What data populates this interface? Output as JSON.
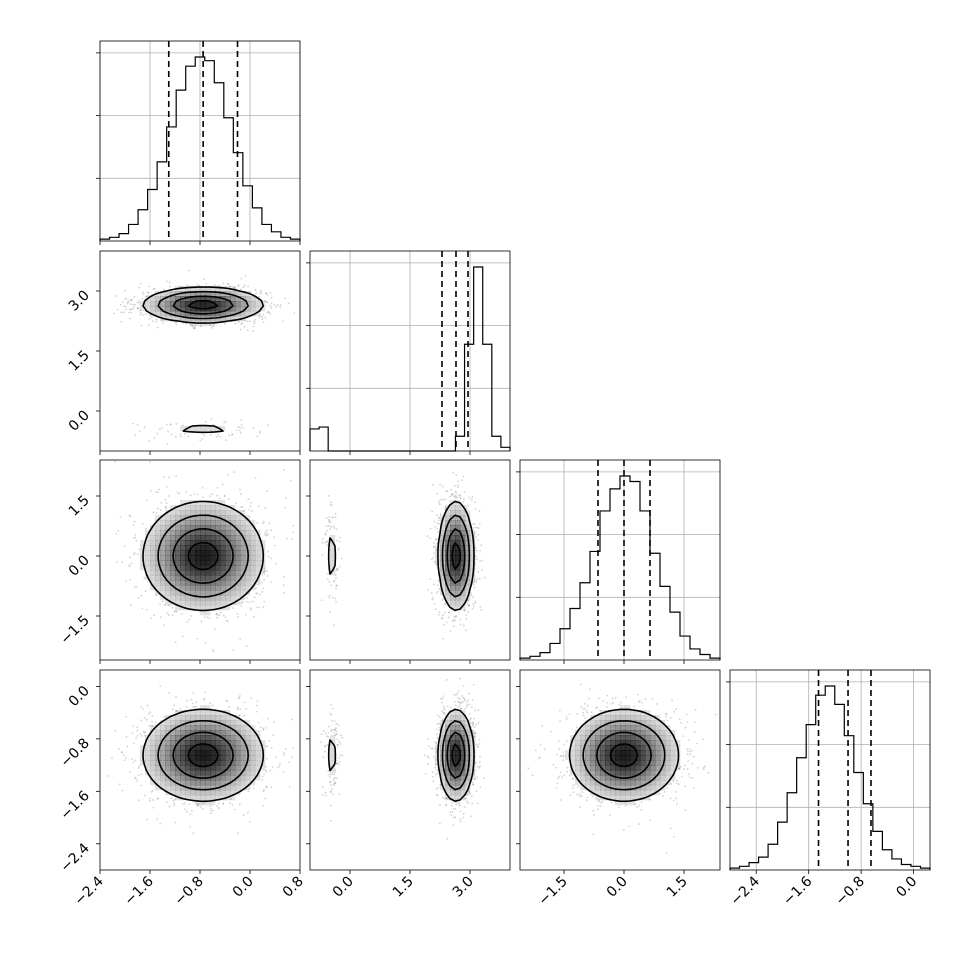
{
  "chart_data": {
    "type": "corner",
    "variables": [
      {
        "ticks": [
          -2.4,
          -1.6,
          -0.8,
          0.0,
          0.8
        ],
        "tick_labels": [
          "−2.4",
          "−1.6",
          "−0.8",
          "0.0",
          "0.8"
        ],
        "range": [
          -2.4,
          0.8
        ]
      },
      {
        "ticks": [
          0.0,
          1.5,
          3.0
        ],
        "tick_labels": [
          "0.0",
          "1.5",
          "3.0"
        ],
        "range": [
          -1.0,
          4.0
        ]
      },
      {
        "ticks": [
          -1.5,
          0.0,
          1.5
        ],
        "tick_labels": [
          "−1.5",
          "0.0",
          "1.5"
        ],
        "range": [
          -2.6,
          2.4
        ]
      },
      {
        "ticks": [
          -2.4,
          -1.6,
          -0.8,
          0.0
        ],
        "tick_labels": [
          "−2.4",
          "−1.6",
          "−0.8",
          "0.0"
        ],
        "range": [
          -2.8,
          0.25
        ]
      }
    ],
    "marginals": [
      {
        "variable": 0,
        "quantiles": [
          -1.3,
          -0.75,
          -0.2
        ],
        "bin_values": [
          0.01,
          0.02,
          0.04,
          0.09,
          0.17,
          0.28,
          0.43,
          0.62,
          0.82,
          0.95,
          1.0,
          0.98,
          0.86,
          0.67,
          0.48,
          0.3,
          0.18,
          0.09,
          0.05,
          0.02,
          0.01
        ]
      },
      {
        "variable": 1,
        "quantiles": [
          2.3,
          2.65,
          2.95
        ],
        "bin_values": [
          0.12,
          0.13,
          0.0,
          0.0,
          0.0,
          0.0,
          0.0,
          0.0,
          0.0,
          0.0,
          0.0,
          0.0,
          0.0,
          0.0,
          0.0,
          0.0,
          0.08,
          0.58,
          1.0,
          0.58,
          0.08,
          0.02
        ]
      },
      {
        "variable": 2,
        "quantiles": [
          -0.65,
          0.0,
          0.65
        ],
        "bin_values": [
          0.01,
          0.02,
          0.04,
          0.09,
          0.17,
          0.28,
          0.42,
          0.59,
          0.81,
          0.93,
          1.0,
          0.97,
          0.81,
          0.58,
          0.4,
          0.26,
          0.13,
          0.06,
          0.03,
          0.01
        ]
      },
      {
        "variable": 3,
        "quantiles": [
          -1.45,
          -1.0,
          -0.65
        ],
        "bin_values": [
          0.01,
          0.02,
          0.04,
          0.07,
          0.14,
          0.26,
          0.42,
          0.61,
          0.79,
          0.95,
          1.0,
          0.9,
          0.73,
          0.53,
          0.36,
          0.21,
          0.11,
          0.06,
          0.03,
          0.02,
          0.01
        ]
      }
    ],
    "joint_modes": [
      {
        "xvar": 0,
        "yvar": 1,
        "modes": [
          {
            "cx": -0.75,
            "cy": 2.65,
            "sx": 0.48,
            "sy": 0.22,
            "weight": 0.92
          },
          {
            "cx": -0.75,
            "cy": -0.45,
            "sx": 0.48,
            "sy": 0.1,
            "weight": 0.08
          }
        ]
      },
      {
        "xvar": 0,
        "yvar": 2,
        "modes": [
          {
            "cx": -0.75,
            "cy": 0.0,
            "sx": 0.48,
            "sy": 0.68,
            "weight": 1.0
          }
        ]
      },
      {
        "xvar": 1,
        "yvar": 2,
        "modes": [
          {
            "cx": 2.65,
            "cy": 0.0,
            "sx": 0.22,
            "sy": 0.68,
            "weight": 0.92
          },
          {
            "cx": -0.45,
            "cy": 0.0,
            "sx": 0.1,
            "sy": 0.68,
            "weight": 0.08
          }
        ]
      },
      {
        "xvar": 0,
        "yvar": 3,
        "modes": [
          {
            "cx": -0.75,
            "cy": -1.05,
            "sx": 0.48,
            "sy": 0.35,
            "weight": 1.0
          }
        ]
      },
      {
        "xvar": 1,
        "yvar": 3,
        "modes": [
          {
            "cx": 2.65,
            "cy": -1.05,
            "sx": 0.22,
            "sy": 0.35,
            "weight": 0.92
          },
          {
            "cx": -0.45,
            "cy": -1.05,
            "sx": 0.1,
            "sy": 0.35,
            "weight": 0.08
          }
        ]
      },
      {
        "xvar": 2,
        "yvar": 3,
        "modes": [
          {
            "cx": 0.0,
            "cy": -1.05,
            "sx": 0.68,
            "sy": 0.35,
            "weight": 1.0
          }
        ]
      }
    ],
    "contour_levels_sigma": [
      0.5,
      1.0,
      1.5,
      2.0
    ],
    "marginal_quantile_line_style": "dashed",
    "grid": true,
    "colors": {
      "ink": "#000000",
      "grid": "#b0b0b0",
      "density": "#000000",
      "points": "#7f7f7f"
    }
  }
}
